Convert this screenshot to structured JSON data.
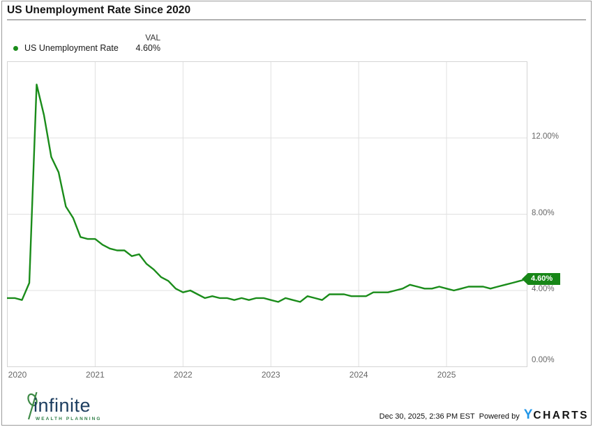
{
  "header": {
    "title": "US Unemployment Rate Since 2020"
  },
  "legend": {
    "series_label": "US Unemployment Rate",
    "val_header": "VAL",
    "val_value": "4.60%"
  },
  "colors": {
    "series_green": "#1a8c1a",
    "badge_green": "#178617",
    "grid": "#e0e0e0",
    "plot_border": "#d4d4d4",
    "tick_text": "#666666",
    "logo_navy": "#1d3e60",
    "logo_green": "#3e8a46",
    "ycharts_blue": "#2196e8"
  },
  "chart_data": {
    "type": "line",
    "title": "US Unemployment Rate Since 2020",
    "xlabel": "",
    "ylabel": "",
    "y_range": [
      0,
      16
    ],
    "grid": true,
    "legend_position": "top-left",
    "series": [
      {
        "name": "US Unemployment Rate",
        "color": "#1a8c1a",
        "frequency": "monthly",
        "start": "2019-12",
        "end": "2025-11",
        "values": [
          3.6,
          3.6,
          3.5,
          4.4,
          14.8,
          13.2,
          11.0,
          10.2,
          8.4,
          7.8,
          6.8,
          6.7,
          6.7,
          6.4,
          6.2,
          6.1,
          6.1,
          5.8,
          5.9,
          5.4,
          5.1,
          4.7,
          4.5,
          4.1,
          3.9,
          4.0,
          3.8,
          3.6,
          3.7,
          3.6,
          3.6,
          3.5,
          3.6,
          3.5,
          3.6,
          3.6,
          3.5,
          3.4,
          3.6,
          3.5,
          3.4,
          3.7,
          3.6,
          3.5,
          3.8,
          3.8,
          3.8,
          3.7,
          3.7,
          3.7,
          3.9,
          3.9,
          3.9,
          4.0,
          4.1,
          4.3,
          4.2,
          4.1,
          4.1,
          4.2,
          4.1,
          4.0,
          4.1,
          4.2,
          4.2,
          4.2,
          4.1,
          4.2,
          4.3,
          4.4,
          4.5,
          4.6
        ]
      }
    ],
    "x_ticks": [
      {
        "label": "2020",
        "month_index": 0
      },
      {
        "label": "2021",
        "month_index": 12
      },
      {
        "label": "2022",
        "month_index": 24
      },
      {
        "label": "2023",
        "month_index": 36
      },
      {
        "label": "2024",
        "month_index": 48
      },
      {
        "label": "2025",
        "month_index": 60
      }
    ],
    "y_ticks": [
      {
        "label": "0.00%",
        "value": 0
      },
      {
        "label": "4.00%",
        "value": 4
      },
      {
        "label": "8.00%",
        "value": 8
      },
      {
        "label": "12.00%",
        "value": 12
      }
    ],
    "last_point_badge": {
      "label": "4.60%",
      "value": 4.6
    }
  },
  "footer": {
    "logo_text": "infinite",
    "logo_subtext": "WEALTH PLANNING",
    "timestamp": "Dec 30, 2025, 2:36 PM EST",
    "powered_by": "Powered by",
    "ycharts_y": "Y",
    "ycharts_rest": "CHARTS"
  }
}
